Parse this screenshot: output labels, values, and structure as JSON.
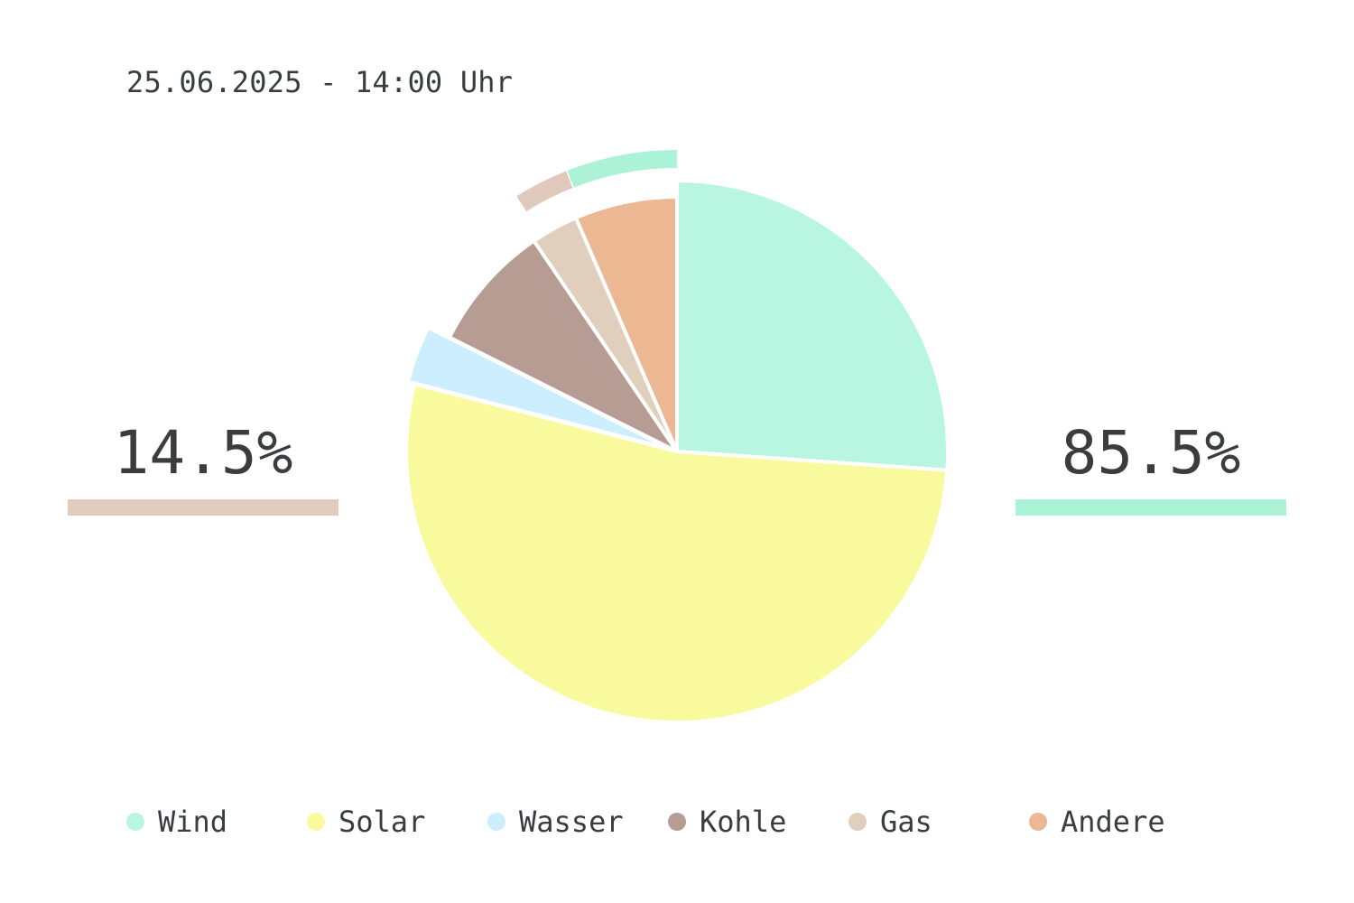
{
  "header": {
    "timestamp": "25.06.2025 - 14:00 Uhr"
  },
  "summary": {
    "left": {
      "value": "14.5%",
      "color": "#e0cbbd"
    },
    "right": {
      "value": "85.5%",
      "color": "#acf2d6"
    }
  },
  "chart_data": {
    "type": "pie",
    "start": "12 o'clock, clockwise",
    "slices": [
      {
        "label": "Wind",
        "value": 26.1,
        "color": "#b9f6e2"
      },
      {
        "label": "Solar",
        "value": 52.9,
        "color": "#f8fa9d"
      },
      {
        "label": "Wasser",
        "value": 3.4,
        "color": "#cdeefe"
      },
      {
        "label": "Kohle",
        "value": 8.1,
        "color": "#b79c93"
      },
      {
        "label": "Gas",
        "value": 3.0,
        "color": "#e0cfbc"
      },
      {
        "label": "Andere",
        "value": 6.5,
        "color": "#ecb793"
      }
    ],
    "outer_ring": [
      {
        "label": "Gas",
        "value": 3.0,
        "color": "#e0c9bc"
      },
      {
        "label": "Wind",
        "value": 6.0,
        "color": "#acf2d6"
      }
    ],
    "legend_position": "bottom"
  }
}
